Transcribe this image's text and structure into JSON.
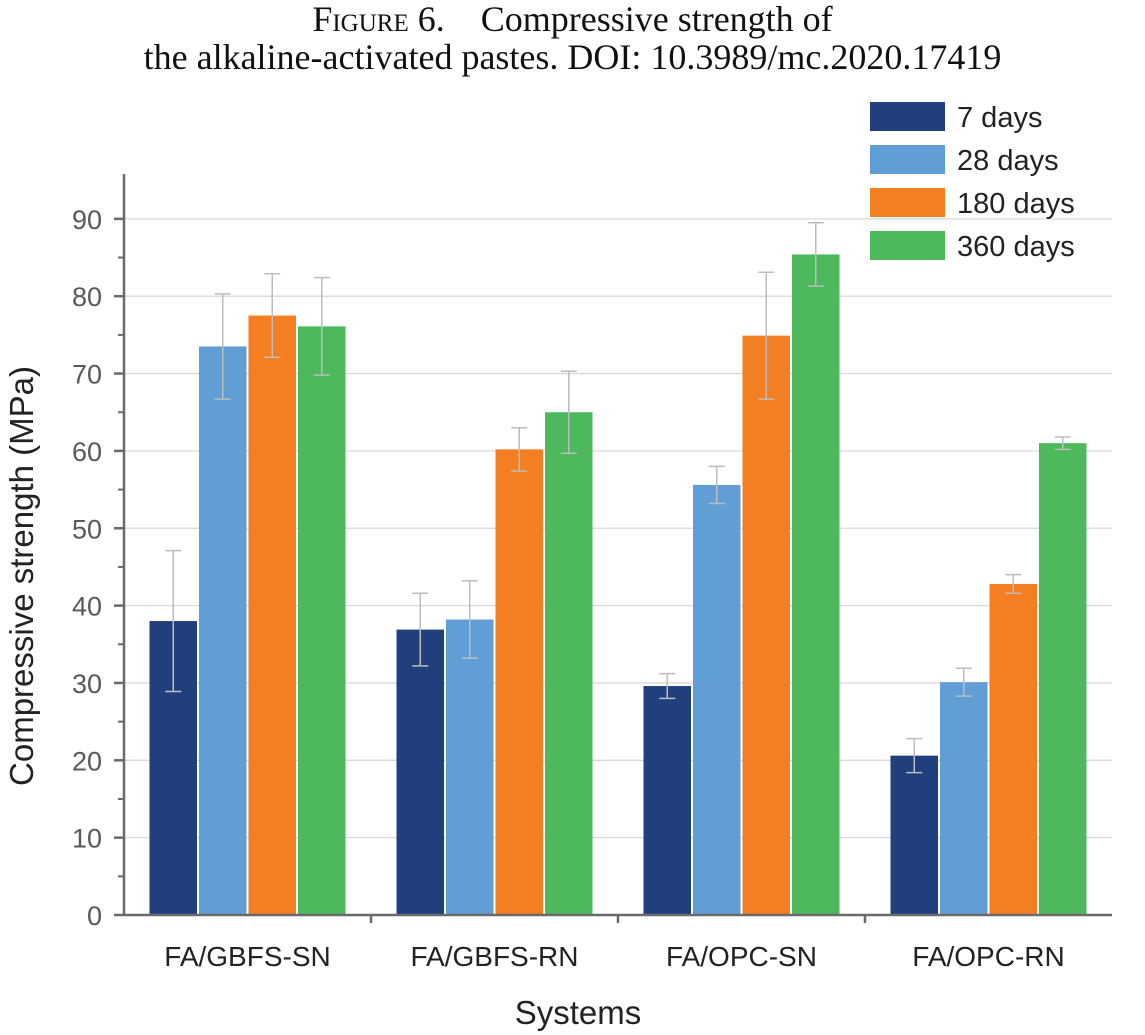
{
  "caption": {
    "label": "Figure 6.",
    "line1": "Compressive strength of",
    "line2": "the alkaline-activated pastes. DOI: 10.3989/mc.2020.17419"
  },
  "chart_data": {
    "type": "bar",
    "title": "",
    "xlabel": "Systems",
    "ylabel": "Compressive strength (MPa)",
    "ylim": [
      0,
      95
    ],
    "yticks": [
      0,
      10,
      20,
      30,
      40,
      50,
      60,
      70,
      80,
      90
    ],
    "grid": true,
    "legend_position": "top-right",
    "categories": [
      "FA/GBFS-SN",
      "FA/GBFS-RN",
      "FA/OPC-SN",
      "FA/OPC-RN"
    ],
    "series": [
      {
        "name": "7 days",
        "color": "#203f7c",
        "values": [
          38.0,
          36.9,
          29.6,
          20.6
        ],
        "errors": [
          9.1,
          4.7,
          1.6,
          2.2
        ]
      },
      {
        "name": "28 days",
        "color": "#619ed5",
        "values": [
          73.5,
          38.2,
          55.6,
          30.1
        ],
        "errors": [
          6.8,
          5.0,
          2.4,
          1.8
        ]
      },
      {
        "name": "180 days",
        "color": "#f47f23",
        "values": [
          77.5,
          60.2,
          74.9,
          42.8
        ],
        "errors": [
          5.4,
          2.8,
          8.2,
          1.2
        ]
      },
      {
        "name": "360 days",
        "color": "#4db85c",
        "values": [
          76.1,
          65.0,
          85.4,
          61.0
        ],
        "errors": [
          6.3,
          5.3,
          4.1,
          0.8
        ]
      }
    ]
  }
}
